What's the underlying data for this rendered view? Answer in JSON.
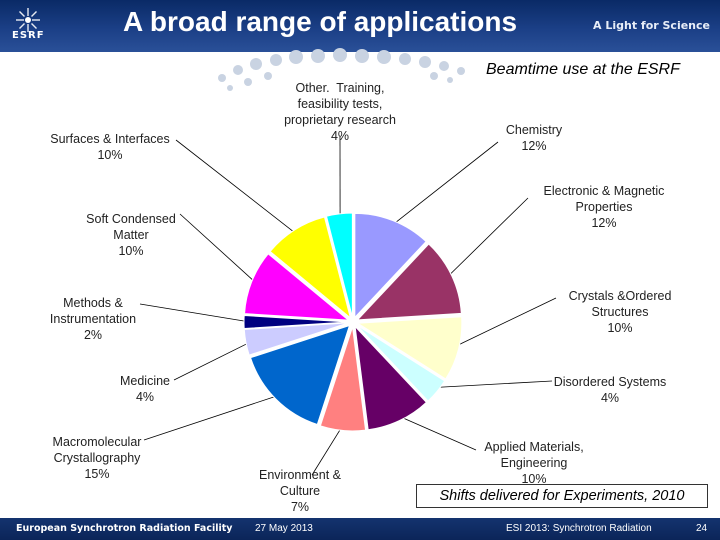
{
  "header": {
    "logo_text": "ESRF",
    "title": "A broad range of applications",
    "tagline": "A Light for Science"
  },
  "note": "Shifts delivered for Experiments, 2010",
  "footer": {
    "org": "European Synchrotron Radiation Facility",
    "date": "27 May 2013",
    "conference": "ESI 2013: Synchrotron Radiation",
    "page": "24"
  },
  "chart_data": {
    "type": "pie",
    "title": "Beamtime  use at the ESRF",
    "unit": "%",
    "slices": [
      {
        "name": "Chemistry",
        "value": 12,
        "label": "12%",
        "color": "#9999ff"
      },
      {
        "name": "Electronic & Magnetic Properties",
        "value": 12,
        "label": "12%",
        "color": "#993366"
      },
      {
        "name": "Crystals &Ordered Structures",
        "value": 10,
        "label": "10%",
        "color": "#ffffcc"
      },
      {
        "name": "Disordered Systems",
        "value": 4,
        "label": "4%",
        "color": "#ccffff"
      },
      {
        "name": "Applied Materials, Engineering",
        "value": 10,
        "label": "10%",
        "color": "#660066"
      },
      {
        "name": "Environment & Culture",
        "value": 7,
        "label": "7%",
        "color": "#ff8080"
      },
      {
        "name": "Macromolecular Crystallography",
        "value": 15,
        "label": "15%",
        "color": "#0066cc"
      },
      {
        "name": "Medicine",
        "value": 4,
        "label": "4%",
        "color": "#ccccff"
      },
      {
        "name": "Methods & Instrumentation",
        "value": 2,
        "label": "2%",
        "color": "#000080"
      },
      {
        "name": "Soft Condensed Matter",
        "value": 10,
        "label": "10%",
        "color": "#ff00ff"
      },
      {
        "name": "Surfaces & Interfaces",
        "value": 10,
        "label": "10%",
        "color": "#ffff00"
      },
      {
        "name": "Other.  Training, feasibility tests, proprietary research",
        "value": 4,
        "label": "4%",
        "color": "#00ffff"
      }
    ]
  }
}
